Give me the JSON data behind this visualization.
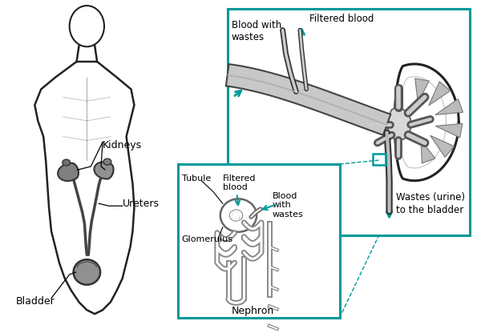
{
  "bg_color": "#ffffff",
  "teal": "#009999",
  "outline": "#222222",
  "gray1": "#888888",
  "gray2": "#aaaaaa",
  "gray3": "#cccccc",
  "gray_dark": "#555555",
  "gray_kidney": "#909090",
  "fig_width": 6.0,
  "fig_height": 4.16,
  "dpi": 100,
  "labels": {
    "kidneys": "Kidneys",
    "ureters": "Ureters",
    "bladder": "Bladder",
    "blood_with_wastes": "Blood with\nwastes",
    "filtered_blood": "Filtered blood",
    "wastes_urine": "Wastes (urine)\nto the bladder",
    "tubule": "Tubule",
    "filtered_blood2": "Filtered\nblood",
    "blood_with_wastes2": "Blood\nwith\nwastes",
    "glomerulus": "Glomerulus",
    "nephron": "Nephron"
  }
}
